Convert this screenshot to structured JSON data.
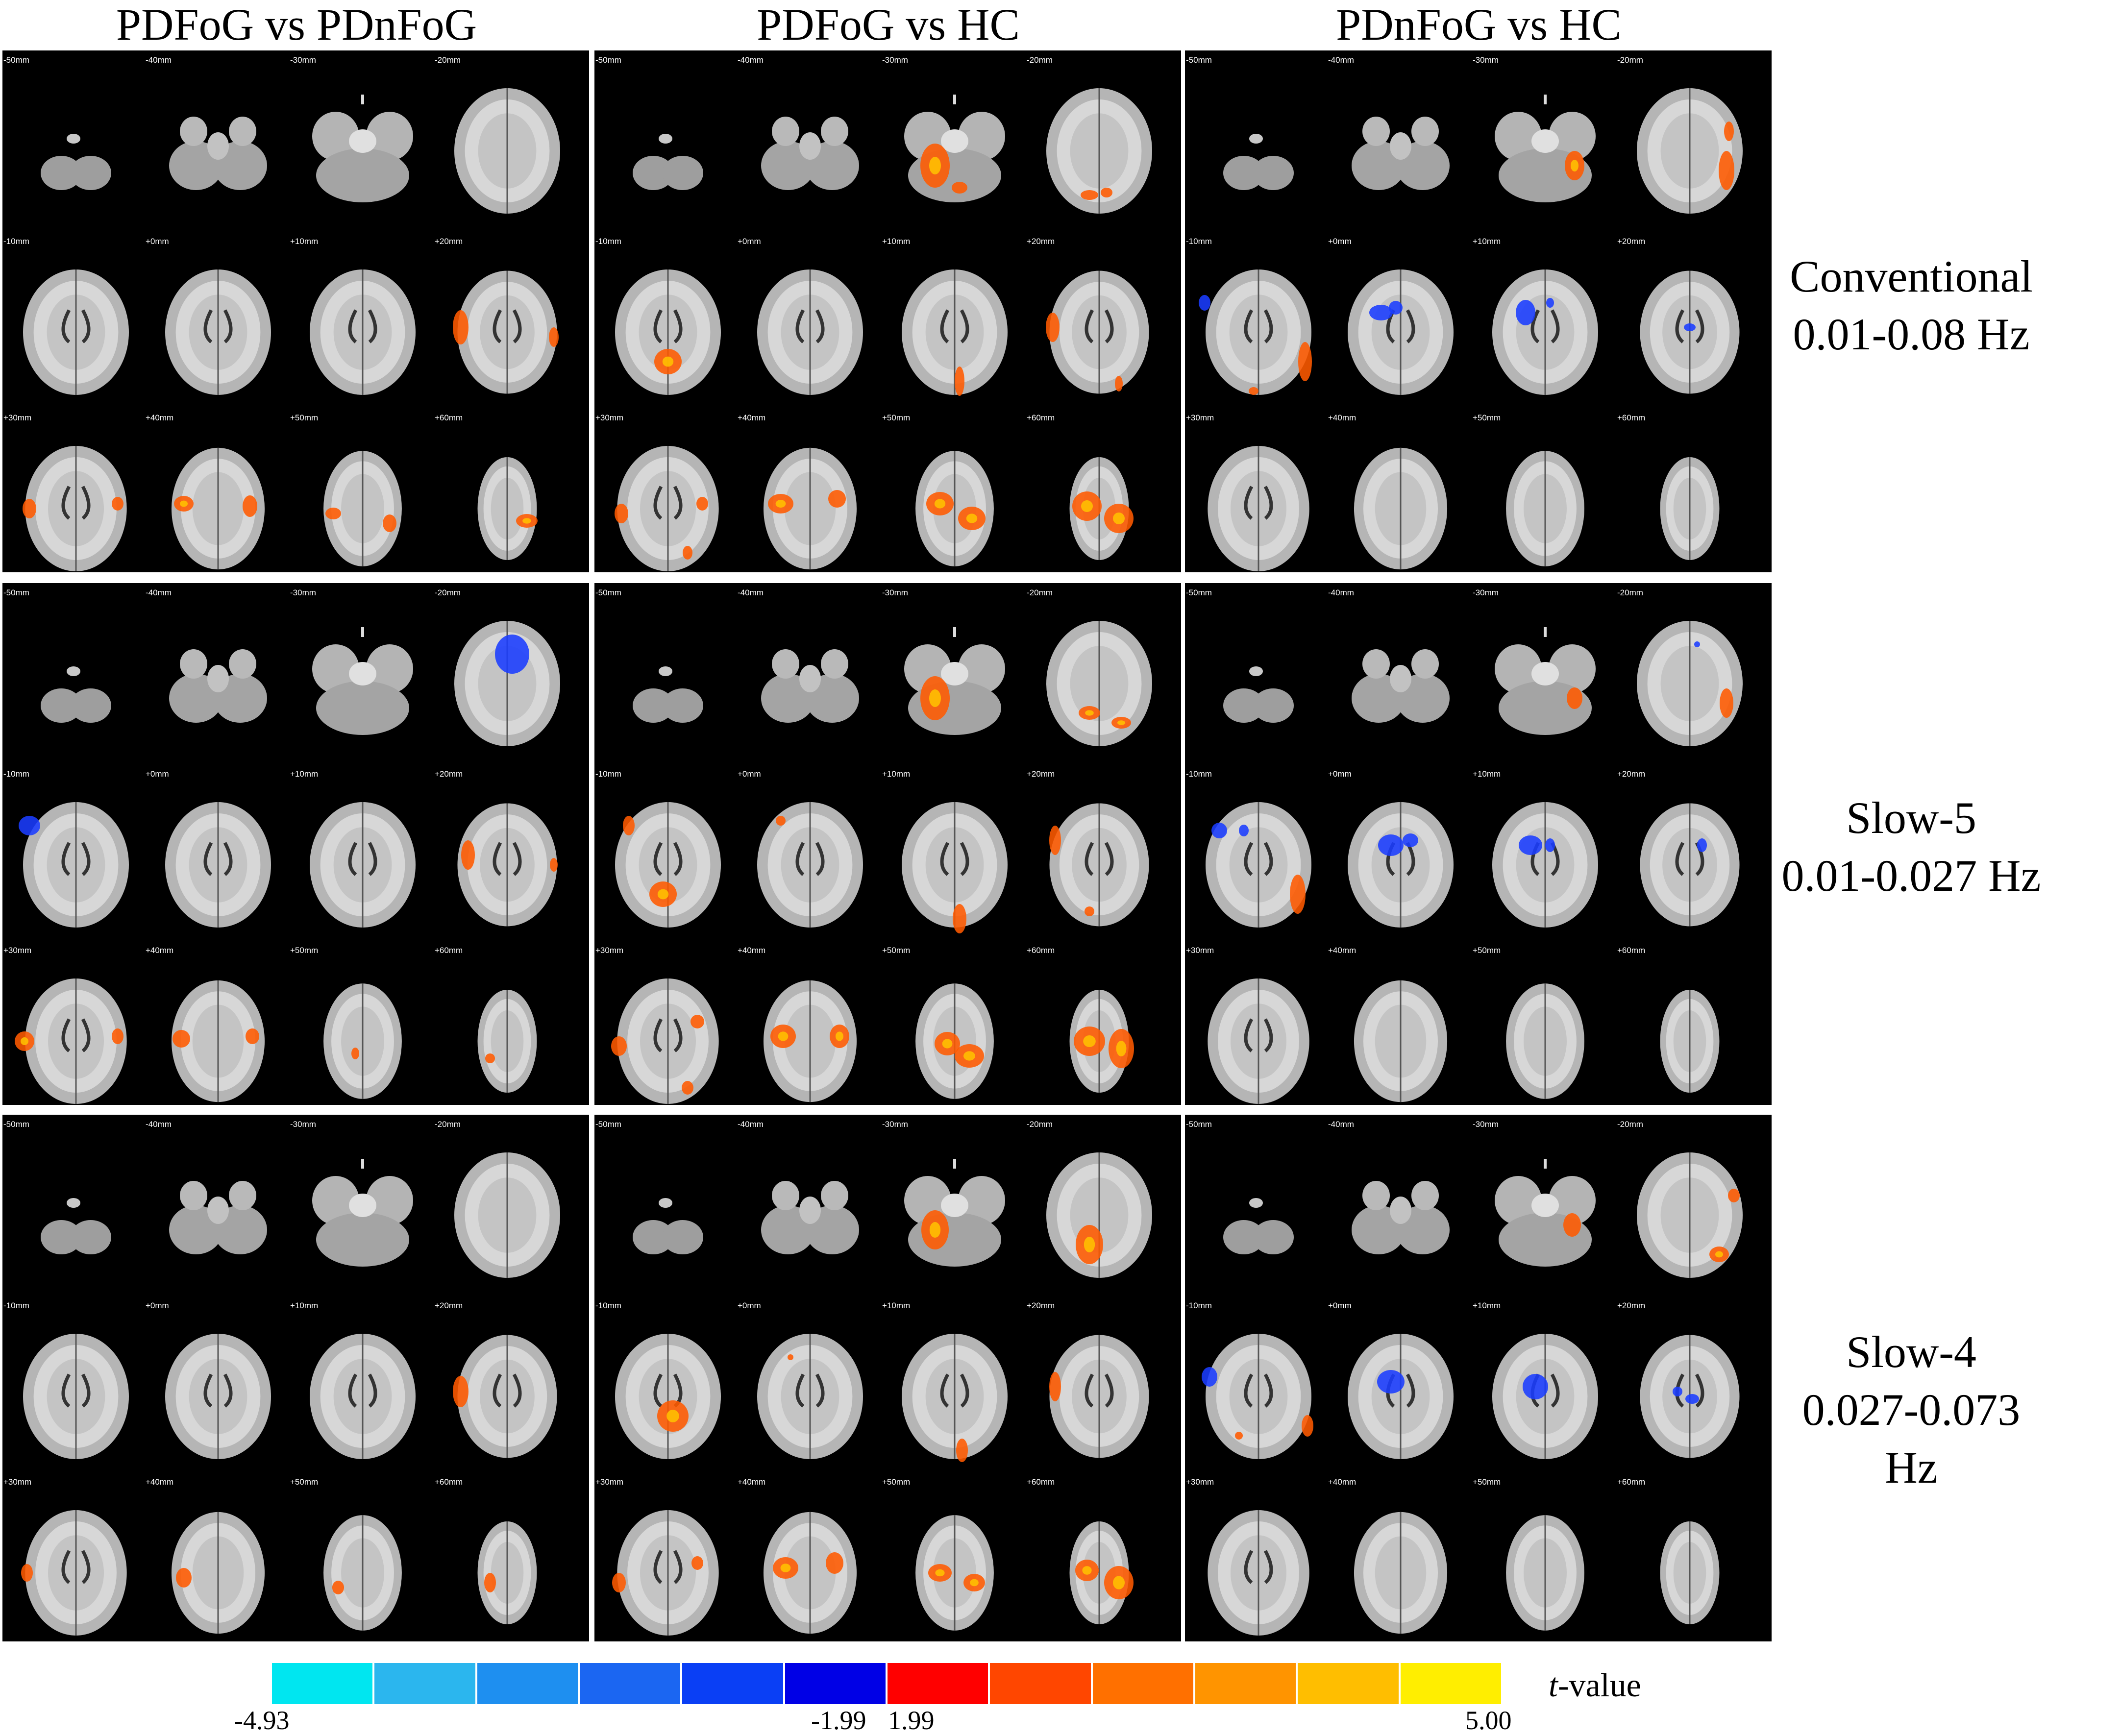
{
  "columns": [
    "PDFoG vs PDnFoG",
    "PDFoG vs HC",
    "PDnFoG vs HC"
  ],
  "rows": [
    {
      "name": "Conventional",
      "band": "0.01-0.08 Hz"
    },
    {
      "name": "Slow-5",
      "band": "0.01-0.027 Hz"
    },
    {
      "name": "Slow-4",
      "band": "0.027-0.073 Hz"
    }
  ],
  "slice_labels": [
    "-50mm",
    "-40mm",
    "-30mm",
    "-20mm",
    "-10mm",
    "+0mm",
    "+10mm",
    "+20mm",
    "+30mm",
    "+40mm",
    "+50mm",
    "+60mm"
  ],
  "colorbar": {
    "label_prefix": "t",
    "label_suffix": "-value",
    "ticks": {
      "min": "-4.93",
      "neg_threshold": "-1.99",
      "pos_threshold": "1.99",
      "max": "5.00"
    },
    "colors": [
      "#00e6f0",
      "#2bb6ee",
      "#1e8ff0",
      "#1b66f2",
      "#0a3ff5",
      "#0000e6",
      "#ff0000",
      "#ff4600",
      "#ff7000",
      "#ff9400",
      "#ffbe00",
      "#ffee00"
    ]
  },
  "colors": {
    "background": "#000000",
    "negative": "#1a3cff",
    "positive": "#ff5a00"
  }
}
